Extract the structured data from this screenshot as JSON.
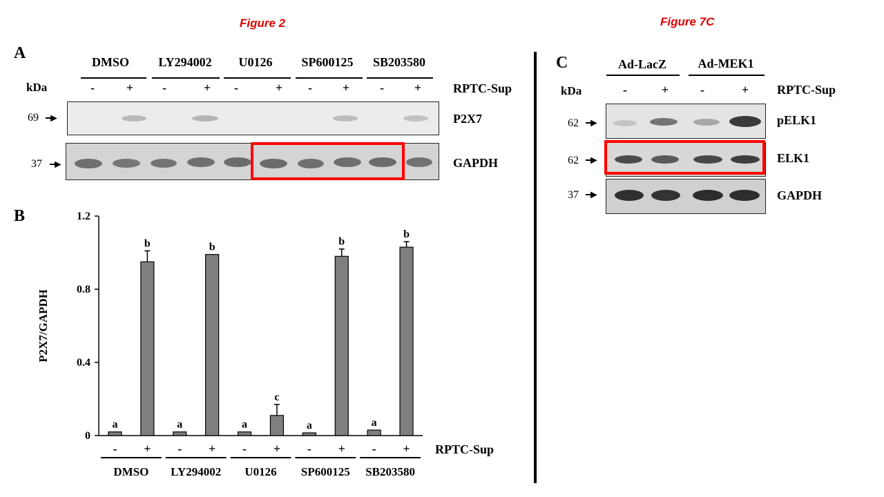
{
  "figure2": {
    "title": "Figure 2",
    "panel_a": {
      "letter": "A",
      "kda": "kDa",
      "groups": [
        "DMSO",
        "LY294002",
        "U0126",
        "SP600125",
        "SB203580"
      ],
      "signs": [
        "-",
        "+"
      ],
      "treatment_label": "RPTC-Sup",
      "blots": [
        {
          "marker": "69",
          "label": "P2X7"
        },
        {
          "marker": "37",
          "label": "GAPDH"
        }
      ]
    },
    "panel_b": {
      "letter": "B"
    }
  },
  "figure7c": {
    "title": "Figure 7C",
    "letter": "C",
    "kda": "kDa",
    "groups": [
      "Ad-LacZ",
      "Ad-MEK1"
    ],
    "signs": [
      "-",
      "+"
    ],
    "treatment_label": "RPTC-Sup",
    "blots": [
      {
        "marker": "62",
        "label": "pELK1"
      },
      {
        "marker": "62",
        "label": "ELK1"
      },
      {
        "marker": "37",
        "label": "GAPDH"
      }
    ]
  },
  "chart_data": {
    "type": "bar",
    "ylabel": "P2X7/GAPDH",
    "xlabel": "",
    "ylim": [
      0,
      1.2
    ],
    "yticks": [
      "0",
      "0.4",
      "0.8",
      "1.2"
    ],
    "groups": [
      "DMSO",
      "LY294002",
      "U0126",
      "SP600125",
      "SB203580"
    ],
    "categories": [
      "-",
      "+",
      "-",
      "+",
      "-",
      "+",
      "-",
      "+",
      "-",
      "+"
    ],
    "values": [
      0.02,
      0.95,
      0.02,
      0.99,
      0.02,
      0.11,
      0.015,
      0.98,
      0.03,
      1.03
    ],
    "errors": [
      0.005,
      0.06,
      0.005,
      0.0,
      0.005,
      0.06,
      0.005,
      0.04,
      0.005,
      0.03
    ],
    "letters": [
      "a",
      "b",
      "a",
      "b",
      "a",
      "c",
      "a",
      "b",
      "a",
      "b"
    ],
    "treatment_label": "RPTC-Sup",
    "bar_color": "#7f7f7f"
  }
}
